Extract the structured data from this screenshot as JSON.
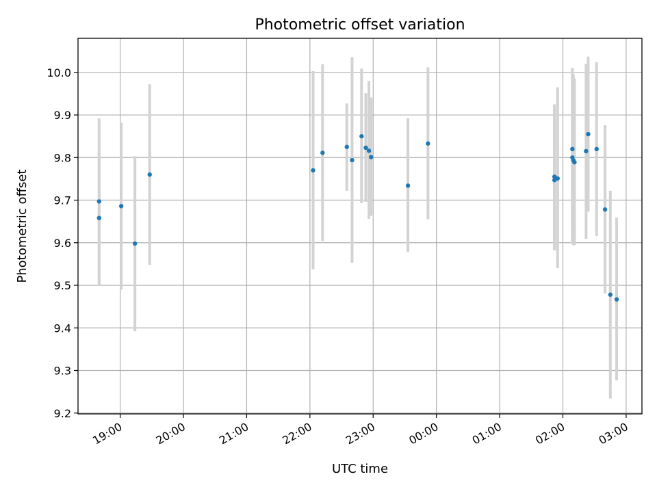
{
  "chart_data": {
    "type": "scatter",
    "title": "Photometric offset variation",
    "xlabel": "UTC time",
    "ylabel": "Photometric offset",
    "x_tick_labels": [
      "19:00",
      "20:00",
      "21:00",
      "22:00",
      "23:00",
      "00:00",
      "01:00",
      "02:00",
      "03:00"
    ],
    "y_tick_labels": [
      "9.2",
      "9.3",
      "9.4",
      "9.5",
      "9.6",
      "9.7",
      "9.8",
      "9.9",
      "10.0"
    ],
    "xlim": [
      "18:20",
      "03:15"
    ],
    "ylim": [
      9.198,
      10.08
    ],
    "grid": true,
    "marker_color": "#1f77b4",
    "errorbar_color": "#d3d3d3",
    "points": [
      {
        "x": "18:40",
        "y": 9.658,
        "ylow": 9.5,
        "yhigh": 9.815
      },
      {
        "x": "18:40",
        "y": 9.697,
        "ylow": 9.503,
        "yhigh": 9.892
      },
      {
        "x": "19:01",
        "y": 9.686,
        "ylow": 9.49,
        "yhigh": 9.882
      },
      {
        "x": "19:14",
        "y": 9.598,
        "ylow": 9.392,
        "yhigh": 9.803
      },
      {
        "x": "19:28",
        "y": 9.76,
        "ylow": 9.548,
        "yhigh": 9.972
      },
      {
        "x": "22:03",
        "y": 9.77,
        "ylow": 9.538,
        "yhigh": 10.003
      },
      {
        "x": "22:12",
        "y": 9.811,
        "ylow": 9.604,
        "yhigh": 10.019
      },
      {
        "x": "22:35",
        "y": 9.825,
        "ylow": 9.722,
        "yhigh": 9.927
      },
      {
        "x": "22:40",
        "y": 9.794,
        "ylow": 9.553,
        "yhigh": 10.036
      },
      {
        "x": "22:49",
        "y": 9.85,
        "ylow": 9.693,
        "yhigh": 10.009
      },
      {
        "x": "22:53",
        "y": 9.823,
        "ylow": 9.696,
        "yhigh": 9.951
      },
      {
        "x": "22:56",
        "y": 9.816,
        "ylow": 9.656,
        "yhigh": 9.98
      },
      {
        "x": "22:58",
        "y": 9.801,
        "ylow": 9.663,
        "yhigh": 9.941
      },
      {
        "x": "23:33",
        "y": 9.734,
        "ylow": 9.578,
        "yhigh": 9.892
      },
      {
        "x": "23:52",
        "y": 9.833,
        "ylow": 9.655,
        "yhigh": 10.012
      },
      {
        "x": "01:52",
        "y": 9.755,
        "ylow": 9.586,
        "yhigh": 9.925
      },
      {
        "x": "01:52",
        "y": 9.747,
        "ylow": 9.582,
        "yhigh": 9.912
      },
      {
        "x": "01:55",
        "y": 9.751,
        "ylow": 9.54,
        "yhigh": 9.965
      },
      {
        "x": "02:09",
        "y": 9.82,
        "ylow": 9.63,
        "yhigh": 10.011
      },
      {
        "x": "02:09",
        "y": 9.8,
        "ylow": 9.598,
        "yhigh": 10.005
      },
      {
        "x": "02:10",
        "y": 9.793,
        "ylow": 9.594,
        "yhigh": 9.995
      },
      {
        "x": "02:11",
        "y": 9.789,
        "ylow": 9.594,
        "yhigh": 9.985
      },
      {
        "x": "02:22",
        "y": 9.815,
        "ylow": 9.609,
        "yhigh": 10.02
      },
      {
        "x": "02:24",
        "y": 9.855,
        "ylow": 9.673,
        "yhigh": 10.037
      },
      {
        "x": "02:32",
        "y": 9.82,
        "ylow": 9.616,
        "yhigh": 10.024
      },
      {
        "x": "02:40",
        "y": 9.678,
        "ylow": 9.481,
        "yhigh": 9.876
      },
      {
        "x": "02:45",
        "y": 9.478,
        "ylow": 9.234,
        "yhigh": 9.722
      },
      {
        "x": "02:51",
        "y": 9.467,
        "ylow": 9.277,
        "yhigh": 9.659
      }
    ]
  }
}
